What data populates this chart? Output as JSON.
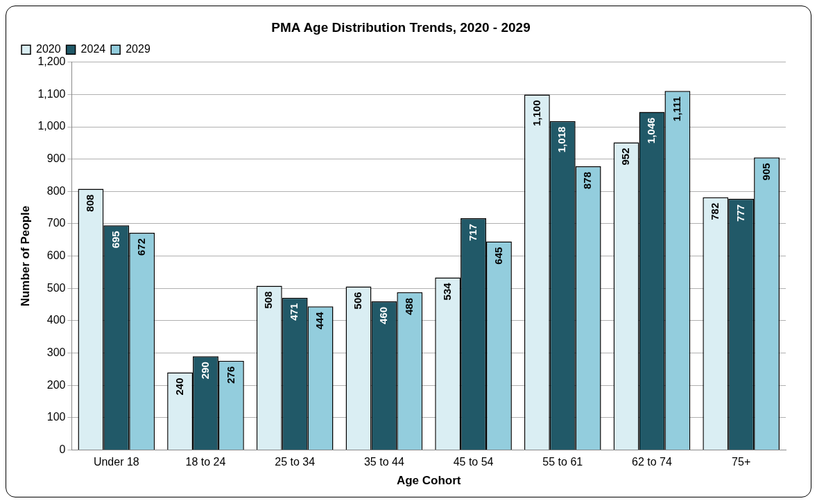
{
  "chart_data": {
    "type": "bar",
    "title": "PMA Age Distribution Trends, 2020 - 2029",
    "xlabel": "Age Cohort",
    "ylabel": "Number of People",
    "categories": [
      "Under 18",
      "18 to 24",
      "25 to 34",
      "35 to 44",
      "45 to 54",
      "55 to 61",
      "62 to 74",
      "75+"
    ],
    "series": [
      {
        "name": "2020",
        "color": "#daeef3",
        "values": [
          808,
          240,
          508,
          506,
          534,
          1100,
          952,
          782
        ],
        "value_labels": [
          "808",
          "240",
          "508",
          "506",
          "534",
          "1,100",
          "952",
          "782"
        ]
      },
      {
        "name": "2024",
        "color": "#215968",
        "values": [
          695,
          290,
          471,
          460,
          717,
          1018,
          1046,
          777
        ],
        "value_labels": [
          "695",
          "290",
          "471",
          "460",
          "717",
          "1,018",
          "1,046",
          "777"
        ]
      },
      {
        "name": "2029",
        "color": "#93cddd",
        "values": [
          672,
          276,
          444,
          488,
          645,
          878,
          1111,
          905
        ],
        "value_labels": [
          "672",
          "276",
          "444",
          "488",
          "645",
          "878",
          "1,111",
          "905"
        ]
      }
    ],
    "ylim": [
      0,
      1200
    ],
    "yticks": [
      0,
      100,
      200,
      300,
      400,
      500,
      600,
      700,
      800,
      900,
      {
        "value": 1000,
        "label": "1,000"
      },
      {
        "value": 1100,
        "label": "1,100"
      },
      {
        "value": 1200,
        "label": "1,200"
      }
    ],
    "grid": "y",
    "legend": "top left"
  }
}
